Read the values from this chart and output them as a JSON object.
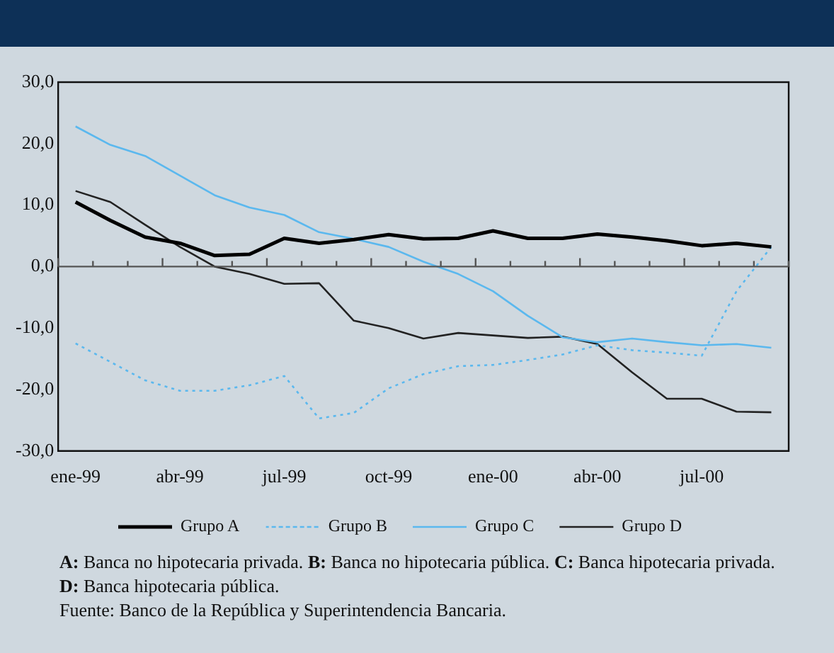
{
  "chart_data": {
    "type": "line",
    "categories": [
      "ene-99",
      null,
      null,
      "abr-99",
      null,
      null,
      "jul-99",
      null,
      null,
      "oct-99",
      null,
      null,
      "ene-00",
      null,
      null,
      "abr-00",
      null,
      null,
      "jul-00",
      null,
      null
    ],
    "series": [
      {
        "name": "Grupo A",
        "color": "#000000",
        "line_style": "solid",
        "values": [
          10.5,
          7.5,
          4.8,
          3.8,
          1.8,
          2.0,
          4.6,
          3.8,
          4.4,
          5.2,
          4.5,
          4.6,
          5.8,
          4.6,
          4.6,
          5.3,
          4.8,
          4.2,
          3.4,
          3.8,
          3.2
        ]
      },
      {
        "name": "Grupo B",
        "color": "#5bb8ee",
        "line_style": "dotted",
        "values": [
          -12.5,
          -15.5,
          -18.5,
          -20.2,
          -20.2,
          -19.3,
          -17.8,
          -24.7,
          -23.8,
          -19.8,
          -17.5,
          -16.2,
          -16.0,
          -15.2,
          -14.3,
          -12.8,
          -13.6,
          -14.0,
          -14.5,
          -4.0,
          3.2
        ]
      },
      {
        "name": "Grupo C",
        "color": "#5bb8ee",
        "line_style": "solid",
        "values": [
          22.8,
          19.8,
          18.0,
          14.8,
          11.6,
          9.6,
          8.4,
          5.6,
          4.5,
          3.2,
          0.8,
          -1.2,
          -4.0,
          -8.0,
          -11.5,
          -12.3,
          -11.7,
          -12.3,
          -12.8,
          -12.6,
          -13.2
        ]
      },
      {
        "name": "Grupo D",
        "color": "#222222",
        "line_style": "solid",
        "values": [
          12.3,
          10.5,
          6.8,
          3.2,
          0.0,
          -1.2,
          -2.8,
          -2.7,
          -8.8,
          -10.0,
          -11.7,
          -10.8,
          -11.2,
          -11.6,
          -11.4,
          -12.6,
          -17.2,
          -21.5,
          -21.5,
          -23.6,
          -23.7
        ]
      }
    ],
    "ylim": [
      -30,
      30
    ],
    "yticks": [
      {
        "value": -30,
        "label": "-30,0"
      },
      {
        "value": -20,
        "label": "-20,0"
      },
      {
        "value": -10,
        "label": "-10,0"
      },
      {
        "value": 0,
        "label": "0,0"
      },
      {
        "value": 10,
        "label": "10,0"
      },
      {
        "value": 20,
        "label": "20,0"
      },
      {
        "value": 30,
        "label": "30,0"
      }
    ],
    "ref_lines": [
      {
        "axis": "y",
        "value": 0,
        "color": "#555555"
      }
    ],
    "grid": false,
    "legend": "bottom",
    "marker": "none",
    "annotations": [
      "A: Banca no hipotecaria privada. B: Banca no hipotecaria pública. C: Banca hipotecaria privada.",
      "D: Banca hipotecaria pública.",
      "Fuente: Banco de la República y Superintendencia Bancaria."
    ]
  }
}
